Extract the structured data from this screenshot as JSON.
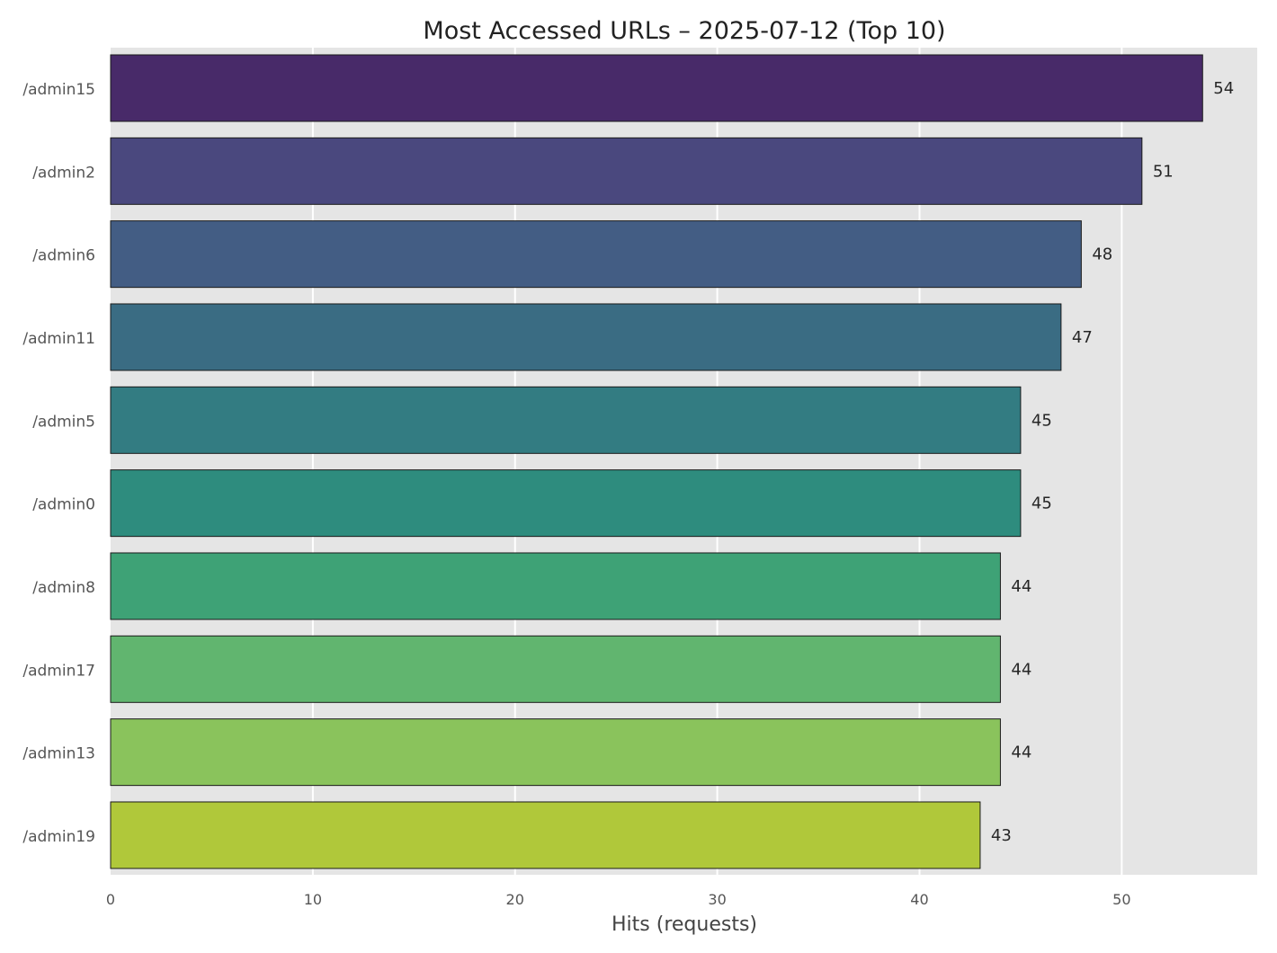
{
  "chart_data": {
    "type": "bar",
    "orientation": "horizontal",
    "title": "Most Accessed URLs – 2025-07-12 (Top 10)",
    "xlabel": "Hits (requests)",
    "ylabel": "",
    "categories": [
      "/admin15",
      "/admin2",
      "/admin6",
      "/admin11",
      "/admin5",
      "/admin0",
      "/admin8",
      "/admin17",
      "/admin13",
      "/admin19"
    ],
    "values": [
      54,
      51,
      48,
      47,
      45,
      45,
      44,
      44,
      44,
      43
    ],
    "data_labels": [
      "54",
      "51",
      "48",
      "47",
      "45",
      "45",
      "44",
      "44",
      "44",
      "43"
    ],
    "xlim": [
      0,
      56.7
    ],
    "xticks": [
      0,
      10,
      20,
      30,
      40,
      50
    ],
    "xtick_labels": [
      "0",
      "10",
      "20",
      "30",
      "40",
      "50"
    ],
    "grid": true,
    "legend": "none",
    "background_color": "#e5e5e5",
    "bar_colors": [
      "#482a69",
      "#4a487e",
      "#435d84",
      "#3a6c83",
      "#337c82",
      "#2e8c7e",
      "#3ea276",
      "#61b56f",
      "#8ac35c",
      "#b0c83a"
    ]
  }
}
